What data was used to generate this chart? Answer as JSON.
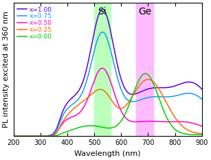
{
  "title": "",
  "xlabel": "Wavelength (nm)",
  "ylabel": "PL intensity excited at 360 nm",
  "xlim": [
    200,
    900
  ],
  "legend_labels": [
    "x=1.00",
    "x=0.75",
    "x=0.50",
    "x=0.25",
    "x=0.00"
  ],
  "line_colors": [
    "#5500dd",
    "#1199ff",
    "#ff00cc",
    "#ff6600",
    "#00cc00"
  ],
  "si_band": [
    500,
    560
  ],
  "ge_band": [
    655,
    720
  ],
  "si_color": "#bbffbb",
  "ge_color": "#ffbbff",
  "si_label": "Si",
  "ge_label": "Ge",
  "background_color": "#ffffff",
  "label_fontsize": 8,
  "legend_fontsize": 6.5,
  "annotation_fontsize": 10
}
